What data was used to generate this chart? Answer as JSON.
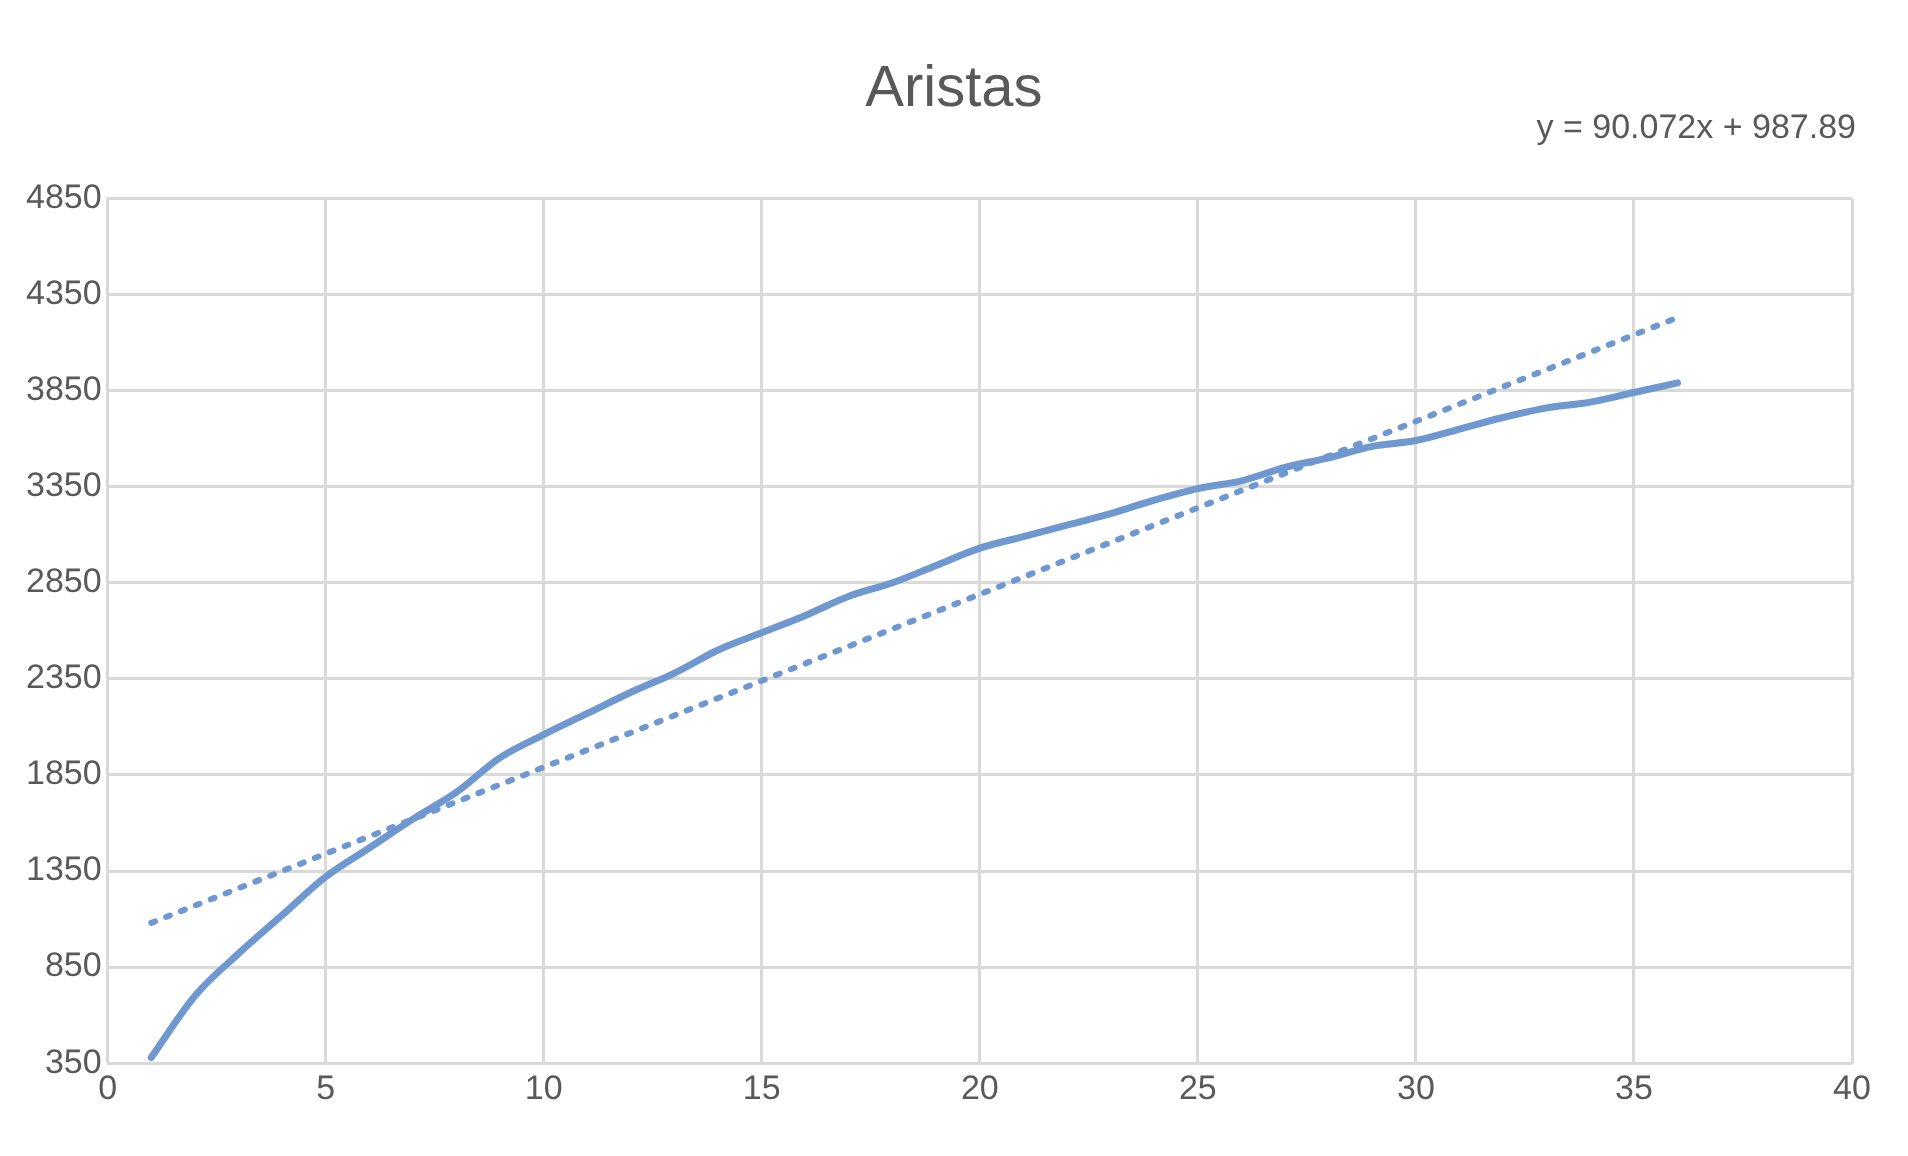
{
  "chart_data": {
    "type": "line",
    "title": "Aristas",
    "x": [
      1,
      2,
      3,
      4,
      5,
      6,
      7,
      8,
      9,
      10,
      11,
      12,
      13,
      14,
      15,
      16,
      17,
      18,
      19,
      20,
      21,
      22,
      23,
      24,
      25,
      26,
      27,
      28,
      29,
      30,
      31,
      32,
      33,
      34,
      35,
      36
    ],
    "series": [
      {
        "color": "#6f97d0",
        "line_style": "solid",
        "values": [
          380,
          700,
          920,
          1120,
          1320,
          1470,
          1620,
          1760,
          1940,
          2060,
          2170,
          2280,
          2380,
          2500,
          2590,
          2680,
          2780,
          2850,
          2940,
          3030,
          3090,
          3150,
          3210,
          3280,
          3340,
          3380,
          3450,
          3500,
          3560,
          3590,
          3650,
          3710,
          3760,
          3790,
          3840,
          3890
        ]
      },
      {
        "type": "line",
        "color": "#6f97d0",
        "line_style": "dotted",
        "x": [
          1,
          36
        ],
        "values": [
          1080,
          4230
        ]
      }
    ],
    "annotations": [
      "y = 90.072x + 987.89"
    ],
    "xlim": [
      0,
      40
    ],
    "xticks": [
      0,
      5,
      10,
      15,
      20,
      25,
      30,
      35,
      40
    ],
    "ylim": [
      350,
      4850
    ],
    "yticks": [
      350,
      850,
      1350,
      1850,
      2350,
      2850,
      3350,
      3850,
      4350,
      4850
    ],
    "grid": true,
    "legend": false,
    "marker": "none"
  }
}
